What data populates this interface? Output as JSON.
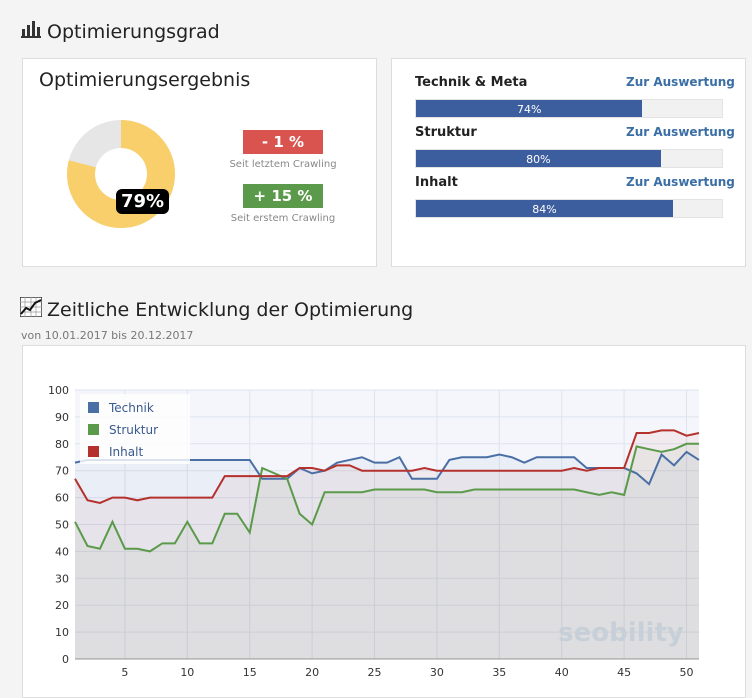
{
  "section1": {
    "title": "Optimierungsgrad",
    "icon": "bar-chart-icon"
  },
  "result": {
    "title": "Optimierungsergebnis",
    "percent": 79,
    "percent_label": "79%",
    "changes": [
      {
        "value": "- 1 %",
        "caption": "Seit letztem Crawling",
        "color": "#d9534f"
      },
      {
        "value": "+ 15 %",
        "caption": "Seit erstem Crawling",
        "color": "#5a9a4a"
      }
    ]
  },
  "metrics": [
    {
      "name": "Technik & Meta",
      "link": "Zur Auswertung",
      "value": 74,
      "label": "74%"
    },
    {
      "name": "Struktur",
      "link": "Zur Auswertung",
      "value": 80,
      "label": "80%"
    },
    {
      "name": "Inhalt",
      "link": "Zur Auswertung",
      "value": 84,
      "label": "84%"
    }
  ],
  "section2": {
    "title": "Zeitliche Entwicklung der Optimierung",
    "icon": "line-chart-icon",
    "subtitle": "von 10.01.2017 bis 20.12.2017"
  },
  "watermark": "seobility",
  "chart_data": {
    "type": "line",
    "xlim": [
      1,
      51
    ],
    "ylim": [
      0,
      100
    ],
    "yticks": [
      0,
      10,
      20,
      30,
      40,
      50,
      60,
      70,
      80,
      90,
      100
    ],
    "xticks": [
      5,
      10,
      15,
      20,
      25,
      30,
      35,
      40,
      45,
      50
    ],
    "legend_position": "top-left",
    "grid": true,
    "x": [
      1,
      2,
      3,
      4,
      5,
      6,
      7,
      8,
      9,
      10,
      11,
      12,
      13,
      14,
      15,
      16,
      17,
      18,
      19,
      20,
      21,
      22,
      23,
      24,
      25,
      26,
      27,
      28,
      29,
      30,
      31,
      32,
      33,
      34,
      35,
      36,
      37,
      38,
      39,
      40,
      41,
      42,
      43,
      44,
      45,
      46,
      47,
      48,
      49,
      50,
      51
    ],
    "series": [
      {
        "name": "Technik",
        "color": "#4a6fa5",
        "values": [
          73,
          74,
          74,
          74,
          74,
          74,
          74,
          74,
          74,
          74,
          74,
          74,
          74,
          74,
          74,
          67,
          67,
          67,
          71,
          69,
          70,
          73,
          74,
          75,
          73,
          73,
          75,
          67,
          67,
          67,
          74,
          75,
          75,
          75,
          76,
          75,
          73,
          75,
          75,
          75,
          75,
          71,
          71,
          71,
          71,
          69,
          65,
          76,
          72,
          77,
          74
        ]
      },
      {
        "name": "Struktur",
        "color": "#5a9a4a",
        "values": [
          51,
          42,
          41,
          51,
          41,
          41,
          40,
          43,
          43,
          51,
          43,
          43,
          54,
          54,
          47,
          71,
          69,
          67,
          54,
          50,
          62,
          62,
          62,
          62,
          63,
          63,
          63,
          63,
          63,
          62,
          62,
          62,
          63,
          63,
          63,
          63,
          63,
          63,
          63,
          63,
          63,
          62,
          61,
          62,
          61,
          79,
          78,
          77,
          78,
          80,
          80
        ]
      },
      {
        "name": "Inhalt",
        "color": "#b5312e",
        "values": [
          67,
          59,
          58,
          60,
          60,
          59,
          60,
          60,
          60,
          60,
          60,
          60,
          68,
          68,
          68,
          68,
          68,
          68,
          71,
          71,
          70,
          72,
          72,
          70,
          70,
          70,
          70,
          70,
          71,
          70,
          70,
          70,
          70,
          70,
          70,
          70,
          70,
          70,
          70,
          70,
          71,
          70,
          71,
          71,
          71,
          84,
          84,
          85,
          85,
          83,
          84
        ]
      }
    ]
  }
}
